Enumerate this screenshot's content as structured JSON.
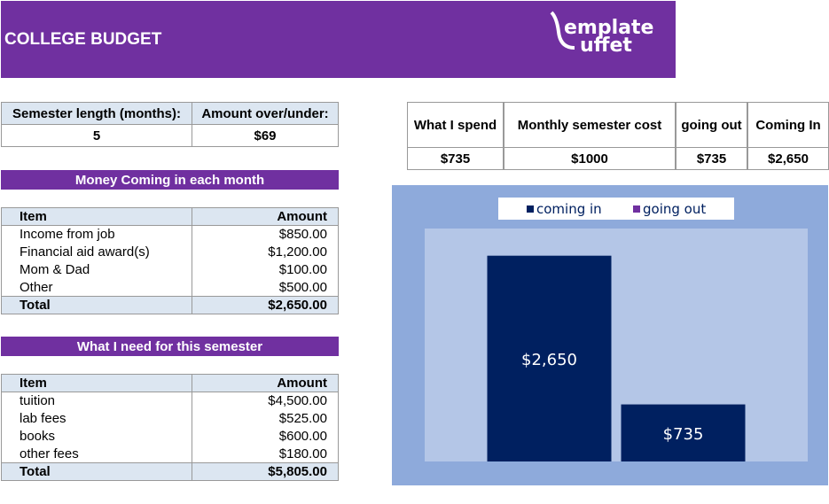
{
  "header": {
    "title": "COLLEGE BUDGET",
    "logo": [
      "emplate",
      "uffet"
    ]
  },
  "summary": {
    "headers": [
      "Semester length (months):",
      "Amount over/under:"
    ],
    "values": [
      "5",
      "$69"
    ]
  },
  "income": {
    "title": "Money Coming in each month",
    "headers": [
      "Item",
      "Amount"
    ],
    "rows": [
      [
        "Income from job",
        "$850.00"
      ],
      [
        "Financial aid award(s)",
        "$1,200.00"
      ],
      [
        "Mom & Dad",
        "$100.00"
      ],
      [
        "Other",
        "$500.00"
      ]
    ],
    "total": [
      "Total",
      "$2,650.00"
    ]
  },
  "expenses": {
    "title": "What I need for this semester",
    "headers": [
      "Item",
      "Amount"
    ],
    "rows": [
      [
        "tuition",
        "$4,500.00"
      ],
      [
        "lab fees",
        "$525.00"
      ],
      [
        "books",
        "$600.00"
      ],
      [
        "other fees",
        "$180.00"
      ]
    ],
    "total": [
      "Total",
      "$5,805.00"
    ]
  },
  "overview": {
    "headers": [
      "What I spend",
      "Monthly semester cost",
      "going out",
      "Coming In"
    ],
    "values": [
      "$735",
      "$1000",
      "$735",
      "$2,650"
    ]
  },
  "chart_data": {
    "type": "bar",
    "categories": [
      null
    ],
    "series": [
      {
        "name": "coming in",
        "color": "#002060",
        "values": [
          2650
        ],
        "value_labels": [
          "$2,650"
        ]
      },
      {
        "name": "going out",
        "color": "#002060",
        "legend_color": "#7030a0",
        "values": [
          735
        ],
        "value_labels": [
          "$735"
        ]
      }
    ],
    "ylim": [
      0,
      3000
    ],
    "legend": "top"
  }
}
